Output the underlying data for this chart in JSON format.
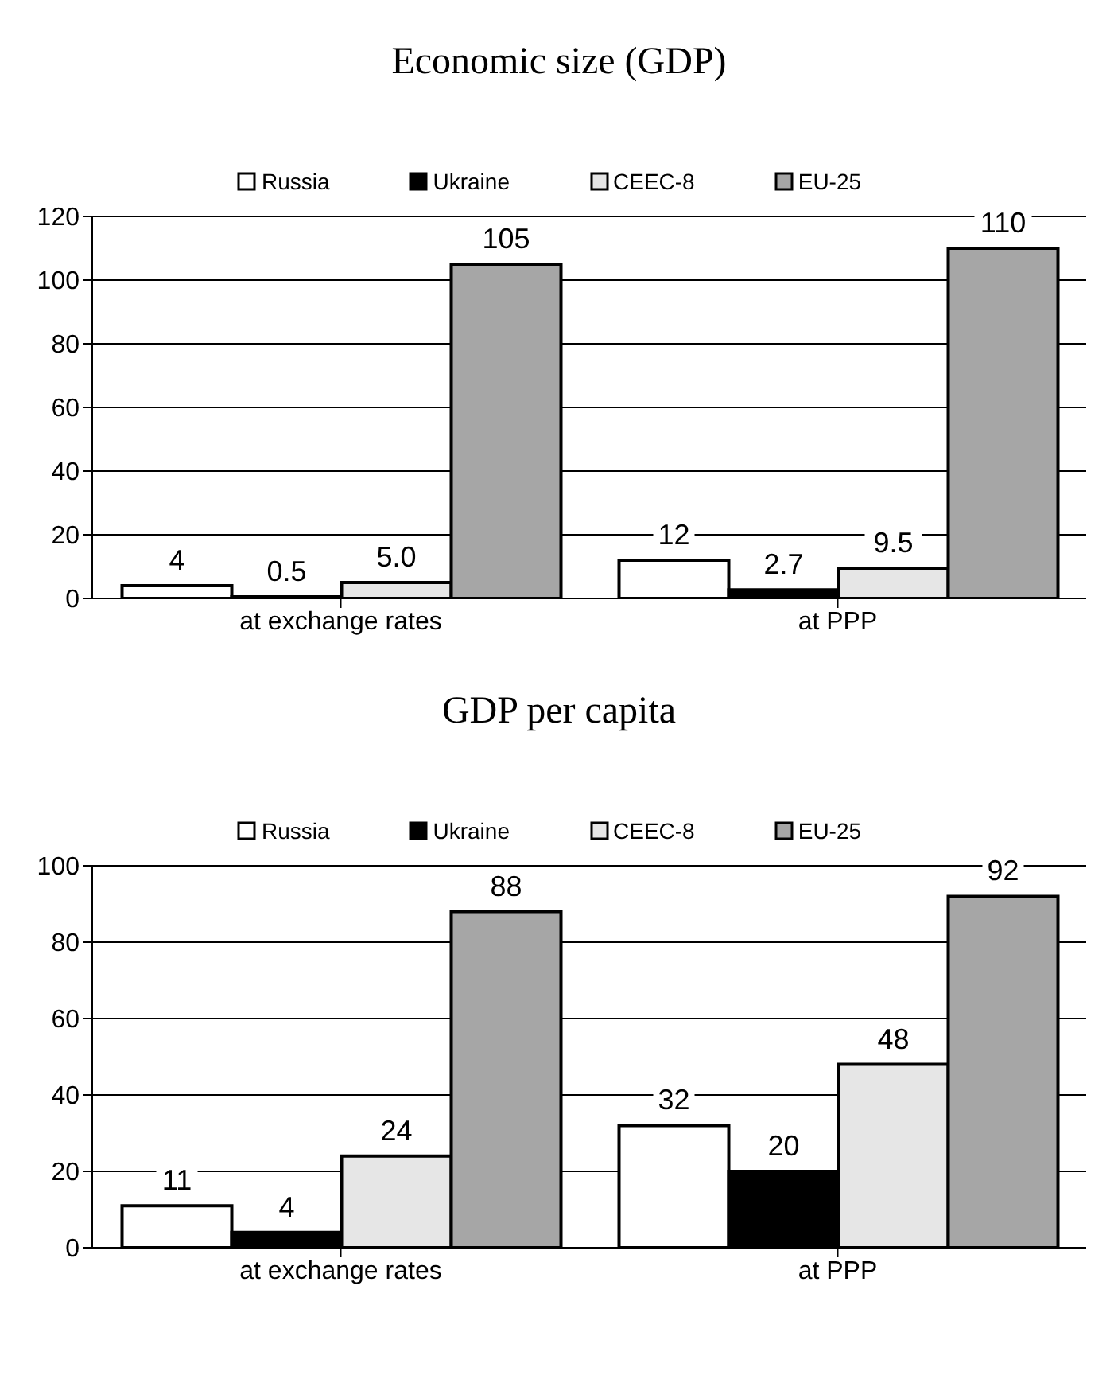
{
  "chart_data": [
    {
      "type": "bar",
      "title": "Economic size (GDP)",
      "categories": [
        "at exchange rates",
        "at PPP"
      ],
      "series": [
        {
          "name": "Russia",
          "color": "#ffffff",
          "values": [
            4,
            12
          ],
          "value_labels": [
            "4",
            "12"
          ]
        },
        {
          "name": "Ukraine",
          "color": "#000000",
          "values": [
            0.5,
            2.7
          ],
          "value_labels": [
            "0.5",
            "2.7"
          ]
        },
        {
          "name": "CEEC-8",
          "color": "#e6e6e6",
          "values": [
            5.0,
            9.5
          ],
          "value_labels": [
            "5.0",
            "9.5"
          ]
        },
        {
          "name": "EU-25",
          "color": "#a6a6a6",
          "values": [
            105,
            110
          ],
          "value_labels": [
            "105",
            "110"
          ]
        }
      ],
      "ylim": [
        0,
        120
      ],
      "yticks": [
        0,
        20,
        40,
        60,
        80,
        100,
        120
      ],
      "grid": "y",
      "legend": "top"
    },
    {
      "type": "bar",
      "title": "GDP per capita",
      "categories": [
        "at exchange rates",
        "at PPP"
      ],
      "series": [
        {
          "name": "Russia",
          "color": "#ffffff",
          "values": [
            11,
            32
          ]
        },
        {
          "name": "Ukraine",
          "color": "#000000",
          "values": [
            4,
            20
          ]
        },
        {
          "name": "CEEC-8",
          "color": "#e6e6e6",
          "values": [
            24,
            48
          ]
        },
        {
          "name": "EU-25",
          "color": "#a6a6a6",
          "values": [
            88,
            92
          ]
        }
      ],
      "ylim": [
        0,
        100
      ],
      "yticks": [
        0,
        20,
        40,
        60,
        80,
        100
      ],
      "grid": "y",
      "legend": "top",
      "data_labels": true
    }
  ]
}
